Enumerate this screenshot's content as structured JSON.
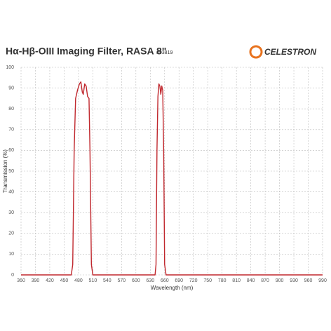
{
  "chart_data": {
    "type": "line",
    "title": "Hα-Hβ-OIII Imaging Filter, RASA 8\"",
    "subtitle": "#93819",
    "brand": "CELESTRON",
    "x_label": "Wavelength (nm)",
    "y_label": "Transmission (%)",
    "x": [
      360,
      465,
      468,
      471,
      474,
      478,
      482,
      485,
      488,
      490,
      493,
      496,
      499,
      502,
      504,
      507,
      510,
      640,
      642,
      644,
      646,
      648,
      650,
      652,
      654,
      656,
      658,
      660,
      663,
      990
    ],
    "series": [
      {
        "name": "Transmission",
        "color": "#c0272d",
        "values": [
          0,
          0,
          5,
          60,
          85,
          89,
          92,
          93,
          88,
          87,
          92,
          91,
          86,
          85,
          60,
          5,
          0,
          0,
          5,
          60,
          86,
          92,
          91,
          87,
          91,
          89,
          60,
          5,
          0,
          0
        ]
      }
    ],
    "xlim": [
      360,
      990
    ],
    "xticks": [
      360,
      390,
      420,
      450,
      480,
      510,
      540,
      570,
      600,
      630,
      660,
      690,
      720,
      750,
      780,
      810,
      840,
      870,
      900,
      930,
      960,
      990
    ],
    "ylim": [
      0,
      100
    ],
    "yticks": [
      0,
      10,
      20,
      30,
      40,
      50,
      60,
      70,
      80,
      90,
      100
    ],
    "grid": true
  }
}
